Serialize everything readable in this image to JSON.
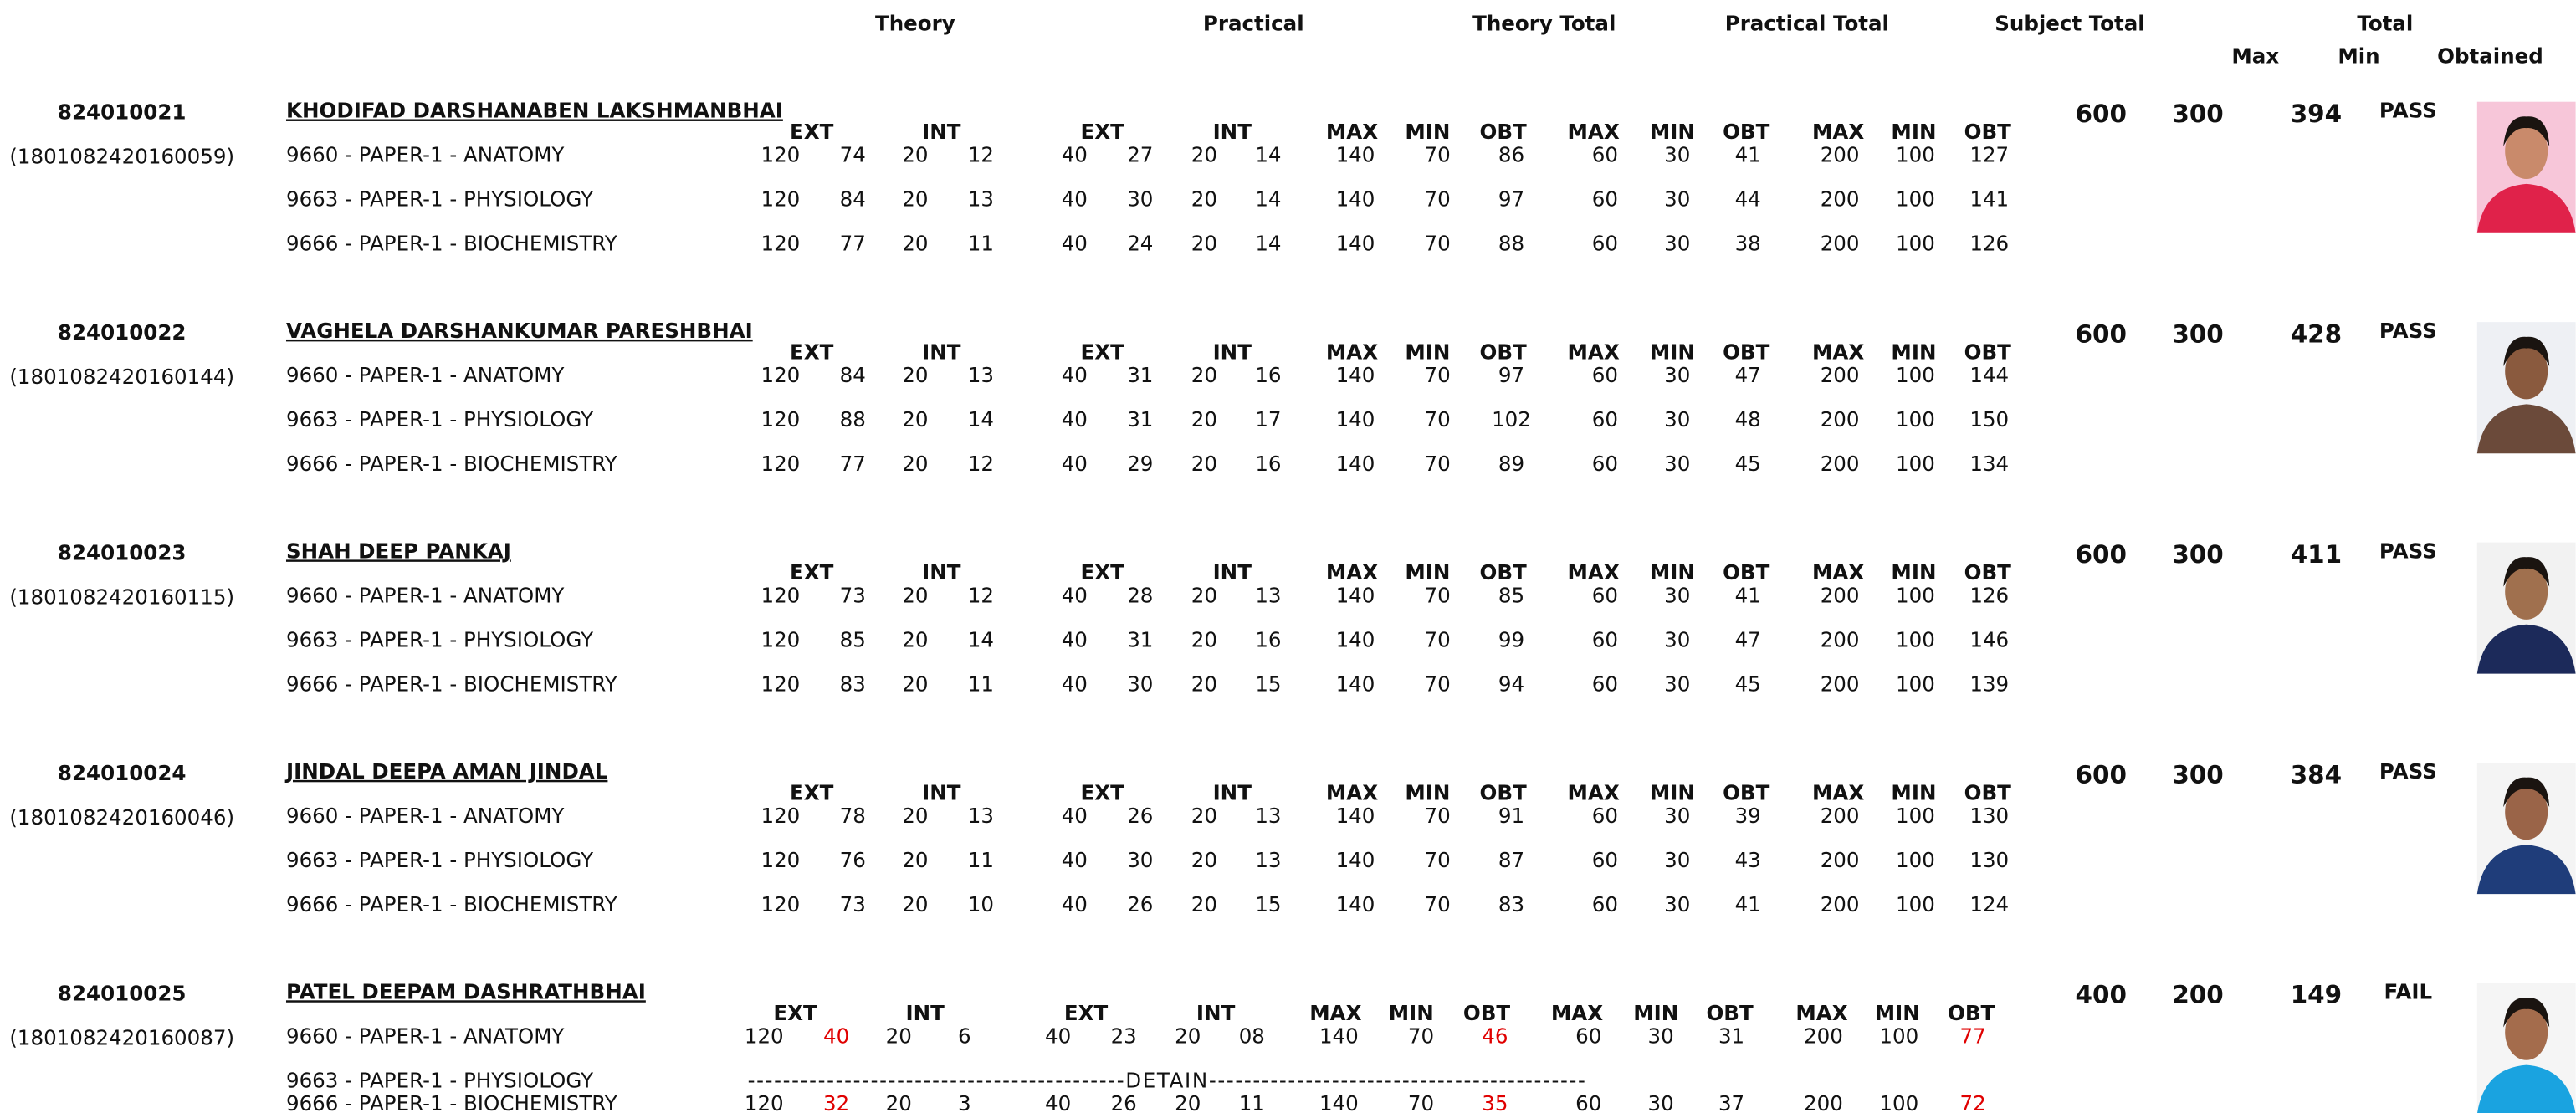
{
  "header": {
    "groups": [
      "Theory",
      "Practical",
      "Theory Total",
      "Practical Total",
      "Subject Total",
      "Total"
    ],
    "total_columns": [
      "Max",
      "Min",
      "Obtained"
    ]
  },
  "subheaders": [
    "EXT",
    "INT",
    "EXT",
    "INT",
    "MAX",
    "MIN",
    "OBT",
    "MAX",
    "MIN",
    "OBT",
    "MAX",
    "MIN",
    "OBT"
  ],
  "highlight_color": "#e00000",
  "students": [
    {
      "seat": "824010021",
      "enrollment": "(1801082420160059)",
      "name": "KHODIFAD DARSHANABEN LAKSHMANBHAI",
      "max": "600",
      "min": "300",
      "obtained": "394",
      "result": "PASS",
      "photo_colors": [
        "#f7c6d9",
        "#e0224a",
        "#c98a6b"
      ],
      "rows": [
        {
          "subject": "9660 - PAPER-1 - ANATOMY",
          "cells": [
            "120",
            "74",
            "20",
            "12",
            "40",
            "27",
            "20",
            "14",
            "140",
            "70",
            "86",
            "60",
            "30",
            "41",
            "200",
            "100",
            "127"
          ]
        },
        {
          "subject": "9663 - PAPER-1 - PHYSIOLOGY",
          "cells": [
            "120",
            "84",
            "20",
            "13",
            "40",
            "30",
            "20",
            "14",
            "140",
            "70",
            "97",
            "60",
            "30",
            "44",
            "200",
            "100",
            "141"
          ]
        },
        {
          "subject": "9666 - PAPER-1 - BIOCHEMISTRY",
          "cells": [
            "120",
            "77",
            "20",
            "11",
            "40",
            "24",
            "20",
            "14",
            "140",
            "70",
            "88",
            "60",
            "30",
            "38",
            "200",
            "100",
            "126"
          ]
        }
      ]
    },
    {
      "seat": "824010022",
      "enrollment": "(1801082420160144)",
      "name": "VAGHELA DARSHANKUMAR PARESHBHAI",
      "max": "600",
      "min": "300",
      "obtained": "428",
      "result": "PASS",
      "photo_colors": [
        "#eef0f4",
        "#6b4a3a",
        "#8a5a3e"
      ],
      "rows": [
        {
          "subject": "9660 - PAPER-1 - ANATOMY",
          "cells": [
            "120",
            "84",
            "20",
            "13",
            "40",
            "31",
            "20",
            "16",
            "140",
            "70",
            "97",
            "60",
            "30",
            "47",
            "200",
            "100",
            "144"
          ]
        },
        {
          "subject": "9663 - PAPER-1 - PHYSIOLOGY",
          "cells": [
            "120",
            "88",
            "20",
            "14",
            "40",
            "31",
            "20",
            "17",
            "140",
            "70",
            "102",
            "60",
            "30",
            "48",
            "200",
            "100",
            "150"
          ]
        },
        {
          "subject": "9666 - PAPER-1 - BIOCHEMISTRY",
          "cells": [
            "120",
            "77",
            "20",
            "12",
            "40",
            "29",
            "20",
            "16",
            "140",
            "70",
            "89",
            "60",
            "30",
            "45",
            "200",
            "100",
            "134"
          ]
        }
      ]
    },
    {
      "seat": "824010023",
      "enrollment": "(1801082420160115)",
      "name": "SHAH DEEP PANKAJ",
      "max": "600",
      "min": "300",
      "obtained": "411",
      "result": "PASS",
      "photo_colors": [
        "#f2f2f2",
        "#1c2a5a",
        "#a0704e"
      ],
      "rows": [
        {
          "subject": "9660 - PAPER-1 - ANATOMY",
          "cells": [
            "120",
            "73",
            "20",
            "12",
            "40",
            "28",
            "20",
            "13",
            "140",
            "70",
            "85",
            "60",
            "30",
            "41",
            "200",
            "100",
            "126"
          ]
        },
        {
          "subject": "9663 - PAPER-1 - PHYSIOLOGY",
          "cells": [
            "120",
            "85",
            "20",
            "14",
            "40",
            "31",
            "20",
            "16",
            "140",
            "70",
            "99",
            "60",
            "30",
            "47",
            "200",
            "100",
            "146"
          ]
        },
        {
          "subject": "9666 - PAPER-1 - BIOCHEMISTRY",
          "cells": [
            "120",
            "83",
            "20",
            "11",
            "40",
            "30",
            "20",
            "15",
            "140",
            "70",
            "94",
            "60",
            "30",
            "45",
            "200",
            "100",
            "139"
          ]
        }
      ]
    },
    {
      "seat": "824010024",
      "enrollment": "(1801082420160046)",
      "name": "JINDAL DEEPA AMAN JINDAL",
      "max": "600",
      "min": "300",
      "obtained": "384",
      "result": "PASS",
      "photo_colors": [
        "#f4f4f4",
        "#1f3d7a",
        "#9a6448"
      ],
      "rows": [
        {
          "subject": "9660 - PAPER-1 - ANATOMY",
          "cells": [
            "120",
            "78",
            "20",
            "13",
            "40",
            "26",
            "20",
            "13",
            "140",
            "70",
            "91",
            "60",
            "30",
            "39",
            "200",
            "100",
            "130"
          ]
        },
        {
          "subject": "9663 - PAPER-1 - PHYSIOLOGY",
          "cells": [
            "120",
            "76",
            "20",
            "11",
            "40",
            "30",
            "20",
            "13",
            "140",
            "70",
            "87",
            "60",
            "30",
            "43",
            "200",
            "100",
            "130"
          ]
        },
        {
          "subject": "9666 - PAPER-1 - BIOCHEMISTRY",
          "cells": [
            "120",
            "73",
            "20",
            "10",
            "40",
            "26",
            "20",
            "15",
            "140",
            "70",
            "83",
            "60",
            "30",
            "41",
            "200",
            "100",
            "124"
          ]
        }
      ]
    },
    {
      "seat": "824010025",
      "enrollment": "(1801082420160087)",
      "name": "PATEL DEEPAM DASHRATHBHAI",
      "max": "400",
      "min": "200",
      "obtained": "149",
      "result": "FAIL",
      "photo_colors": [
        "#f5f5f5",
        "#1aa3e0",
        "#a46c4c"
      ],
      "rows": [
        {
          "subject": "9660 - PAPER-1 - ANATOMY",
          "cells": [
            "120",
            "40",
            "20",
            "6",
            "40",
            "23",
            "20",
            "08",
            "140",
            "70",
            "46",
            "60",
            "30",
            "31",
            "200",
            "100",
            "77"
          ],
          "failed_cells": [
            1,
            10,
            16
          ]
        },
        {
          "subject": "9663 - PAPER-1 - PHYSIOLOGY",
          "detain": "-------------------------------------------DETAIN-------------------------------------------"
        },
        {
          "subject": "9666 - PAPER-1 - BIOCHEMISTRY",
          "cells": [
            "120",
            "32",
            "20",
            "3",
            "40",
            "26",
            "20",
            "11",
            "140",
            "70",
            "35",
            "60",
            "30",
            "37",
            "200",
            "100",
            "72"
          ],
          "failed_cells": [
            1,
            10,
            16
          ]
        }
      ]
    }
  ]
}
